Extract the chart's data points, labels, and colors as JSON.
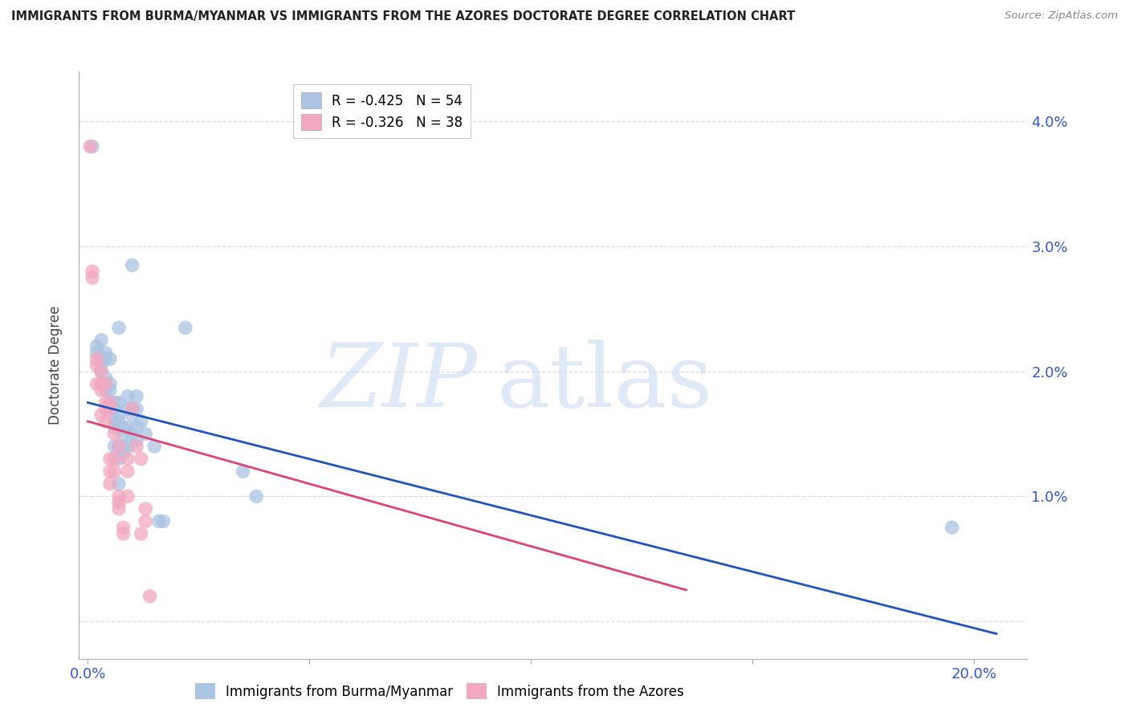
{
  "title": "IMMIGRANTS FROM BURMA/MYANMAR VS IMMIGRANTS FROM THE AZORES DOCTORATE DEGREE CORRELATION CHART",
  "source": "Source: ZipAtlas.com",
  "ylabel": "Doctorate Degree",
  "legend_entry1": "R = -0.425   N = 54",
  "legend_entry2": "R = -0.326   N = 38",
  "blue_color": "#aac4e2",
  "pink_color": "#f2a8c0",
  "blue_line_color": "#2255bb",
  "pink_line_color": "#dd4477",
  "xlim": [
    -0.002,
    0.212
  ],
  "ylim": [
    -0.003,
    0.044
  ],
  "x_ticks": [
    0.0,
    0.05,
    0.1,
    0.15,
    0.2
  ],
  "x_tick_labels": [
    "0.0%",
    "",
    "",
    "",
    "20.0%"
  ],
  "y_ticks": [
    0.0,
    0.01,
    0.02,
    0.03,
    0.04
  ],
  "y_tick_labels_right": [
    "",
    "1.0%",
    "2.0%",
    "3.0%",
    "4.0%"
  ],
  "blue_scatter": [
    [
      0.001,
      0.038
    ],
    [
      0.002,
      0.022
    ],
    [
      0.002,
      0.0215
    ],
    [
      0.003,
      0.0225
    ],
    [
      0.003,
      0.021
    ],
    [
      0.003,
      0.0205
    ],
    [
      0.003,
      0.02
    ],
    [
      0.004,
      0.0215
    ],
    [
      0.004,
      0.021
    ],
    [
      0.004,
      0.0195
    ],
    [
      0.004,
      0.0185
    ],
    [
      0.005,
      0.021
    ],
    [
      0.005,
      0.019
    ],
    [
      0.005,
      0.0185
    ],
    [
      0.005,
      0.0175
    ],
    [
      0.005,
      0.017
    ],
    [
      0.006,
      0.0175
    ],
    [
      0.006,
      0.017
    ],
    [
      0.006,
      0.016
    ],
    [
      0.006,
      0.0155
    ],
    [
      0.006,
      0.014
    ],
    [
      0.007,
      0.0235
    ],
    [
      0.007,
      0.0175
    ],
    [
      0.007,
      0.0165
    ],
    [
      0.007,
      0.016
    ],
    [
      0.007,
      0.0155
    ],
    [
      0.007,
      0.014
    ],
    [
      0.007,
      0.013
    ],
    [
      0.007,
      0.011
    ],
    [
      0.008,
      0.0155
    ],
    [
      0.008,
      0.015
    ],
    [
      0.008,
      0.014
    ],
    [
      0.008,
      0.0135
    ],
    [
      0.009,
      0.018
    ],
    [
      0.009,
      0.017
    ],
    [
      0.009,
      0.0155
    ],
    [
      0.009,
      0.014
    ],
    [
      0.01,
      0.0285
    ],
    [
      0.01,
      0.017
    ],
    [
      0.01,
      0.0165
    ],
    [
      0.01,
      0.015
    ],
    [
      0.011,
      0.018
    ],
    [
      0.011,
      0.017
    ],
    [
      0.011,
      0.0155
    ],
    [
      0.011,
      0.0145
    ],
    [
      0.012,
      0.016
    ],
    [
      0.013,
      0.015
    ],
    [
      0.015,
      0.014
    ],
    [
      0.016,
      0.008
    ],
    [
      0.017,
      0.008
    ],
    [
      0.022,
      0.0235
    ],
    [
      0.035,
      0.012
    ],
    [
      0.038,
      0.01
    ],
    [
      0.195,
      0.0075
    ]
  ],
  "pink_scatter": [
    [
      0.0005,
      0.038
    ],
    [
      0.001,
      0.028
    ],
    [
      0.001,
      0.0275
    ],
    [
      0.002,
      0.021
    ],
    [
      0.002,
      0.0205
    ],
    [
      0.002,
      0.019
    ],
    [
      0.003,
      0.02
    ],
    [
      0.003,
      0.019
    ],
    [
      0.003,
      0.0185
    ],
    [
      0.003,
      0.0165
    ],
    [
      0.004,
      0.019
    ],
    [
      0.004,
      0.0175
    ],
    [
      0.004,
      0.017
    ],
    [
      0.004,
      0.016
    ],
    [
      0.005,
      0.0175
    ],
    [
      0.005,
      0.017
    ],
    [
      0.005,
      0.013
    ],
    [
      0.005,
      0.012
    ],
    [
      0.005,
      0.011
    ],
    [
      0.006,
      0.015
    ],
    [
      0.006,
      0.013
    ],
    [
      0.006,
      0.012
    ],
    [
      0.007,
      0.014
    ],
    [
      0.007,
      0.01
    ],
    [
      0.007,
      0.0095
    ],
    [
      0.007,
      0.009
    ],
    [
      0.008,
      0.0075
    ],
    [
      0.008,
      0.007
    ],
    [
      0.009,
      0.013
    ],
    [
      0.009,
      0.012
    ],
    [
      0.009,
      0.01
    ],
    [
      0.01,
      0.017
    ],
    [
      0.011,
      0.014
    ],
    [
      0.012,
      0.013
    ],
    [
      0.012,
      0.007
    ],
    [
      0.013,
      0.009
    ],
    [
      0.013,
      0.008
    ],
    [
      0.014,
      0.002
    ]
  ],
  "blue_trend_x": [
    0.0,
    0.205
  ],
  "blue_trend_y": [
    0.0175,
    -0.001
  ],
  "pink_trend_x": [
    0.0,
    0.135
  ],
  "pink_trend_y": [
    0.016,
    0.0025
  ]
}
